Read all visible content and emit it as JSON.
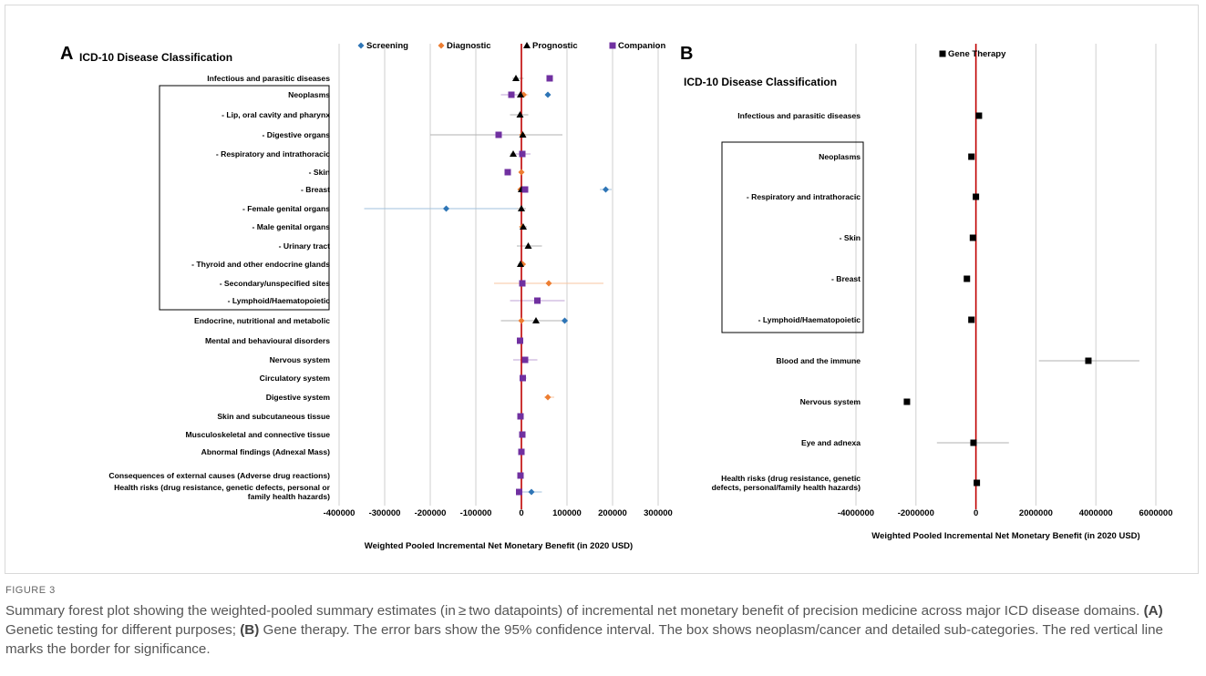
{
  "figure": {
    "label": "FIGURE 3",
    "caption_parts": [
      {
        "text": "Summary forest plot showing the weighted-pooled summary estimates (in ≥ two datapoints) of incremental net monetary benefit of precision medicine across major ICD disease domains. ",
        "bold": false
      },
      {
        "text": "(A)",
        "bold": true
      },
      {
        "text": " Genetic testing for different purposes; ",
        "bold": false
      },
      {
        "text": "(B)",
        "bold": true
      },
      {
        "text": " Gene therapy. The error bars show the 95% confidence interval. The box shows neoplasm/cancer and detailed sub-categories. The red vertical line marks the border for significance.",
        "bold": false
      }
    ]
  },
  "chart_data": [
    {
      "panel": "A",
      "type": "forest",
      "title": "ICD-10 Disease Classification",
      "xlabel": "Weighted Pooled Incremental Net Monetary Benefit (in 2020 USD)",
      "xlim": [
        -400000,
        300000
      ],
      "xticks": [
        -400000,
        -300000,
        -200000,
        -100000,
        0,
        100000,
        200000,
        300000
      ],
      "xtick_labels": [
        "-400000",
        "-300000",
        "-200000",
        "-100000",
        "0",
        "100000",
        "200000",
        "300000"
      ],
      "reference_line": 0,
      "grid": "vertical",
      "legend_position": "top",
      "boxed_categories": [
        "Neoplasms",
        "- Lymphoid/Haematopoietic"
      ],
      "series": [
        {
          "name": "Screening",
          "marker": "diamond",
          "color": "#2e75b6"
        },
        {
          "name": "Diagnostic",
          "marker": "diamond",
          "color": "#ed7d31"
        },
        {
          "name": "Prognostic",
          "marker": "triangle",
          "color": "#000000"
        },
        {
          "name": "Companion",
          "marker": "square",
          "color": "#7030a0"
        }
      ],
      "categories": [
        "Infectious and parasitic diseases",
        "Neoplasms",
        "- Lip, oral cavity and pharynx",
        "- Digestive organs",
        "- Respiratory and intrathoracic",
        "- Skin",
        "- Breast",
        "- Female genital organs",
        "- Male genital organs",
        "- Urinary tract",
        "- Thyroid and other endocrine glands",
        "- Secondary/unspecified sites",
        "- Lymphoid/Haematopoietic",
        "Endocrine, nutritional and metabolic",
        "Mental and behavioural disorders",
        "Nervous system",
        "Circulatory system",
        "Digestive system",
        "Skin and subcutaneous tissue",
        "Musculoskeletal and connective tissue",
        "Abnormal findings (Adnexal Mass)",
        "Consequences of external causes (Adverse drug reactions)",
        "Health risks (drug resistance, genetic defects, personal or family health hazards)"
      ],
      "points": [
        {
          "cat": 0,
          "s": "Prognostic",
          "v": -12000,
          "lo": -20000,
          "hi": 5000
        },
        {
          "cat": 0,
          "s": "Companion",
          "v": 62000,
          "lo": 58000,
          "hi": 66000
        },
        {
          "cat": 1,
          "s": "Screening",
          "v": 58000,
          "lo": 52000,
          "hi": 64000
        },
        {
          "cat": 1,
          "s": "Diagnostic",
          "v": 5000,
          "lo": -5000,
          "hi": 15000
        },
        {
          "cat": 1,
          "s": "Prognostic",
          "v": -2000,
          "lo": -10000,
          "hi": 8000
        },
        {
          "cat": 1,
          "s": "Companion",
          "v": -22000,
          "lo": -45000,
          "hi": 0
        },
        {
          "cat": 2,
          "s": "Prognostic",
          "v": -3000,
          "lo": -25000,
          "hi": 15000
        },
        {
          "cat": 3,
          "s": "Diagnostic",
          "v": 2000,
          "lo": -5000,
          "hi": 10000
        },
        {
          "cat": 3,
          "s": "Prognostic",
          "v": 3000,
          "lo": -200000,
          "hi": 90000
        },
        {
          "cat": 3,
          "s": "Companion",
          "v": -50000,
          "lo": -60000,
          "hi": -40000
        },
        {
          "cat": 4,
          "s": "Prognostic",
          "v": -18000,
          "lo": -25000,
          "hi": -10000
        },
        {
          "cat": 4,
          "s": "Companion",
          "v": 2000,
          "lo": -20000,
          "hi": 20000
        },
        {
          "cat": 5,
          "s": "Diagnostic",
          "v": 0,
          "lo": -5000,
          "hi": 5000
        },
        {
          "cat": 5,
          "s": "Companion",
          "v": -30000,
          "lo": -36000,
          "hi": -24000
        },
        {
          "cat": 6,
          "s": "Screening",
          "v": 185000,
          "lo": 172000,
          "hi": 198000
        },
        {
          "cat": 6,
          "s": "Diagnostic",
          "v": -2000,
          "lo": -6000,
          "hi": 2000
        },
        {
          "cat": 6,
          "s": "Prognostic",
          "v": 0,
          "lo": -5000,
          "hi": 5000
        },
        {
          "cat": 6,
          "s": "Companion",
          "v": 8000,
          "lo": 2000,
          "hi": 14000
        },
        {
          "cat": 7,
          "s": "Screening",
          "v": -165000,
          "lo": -345000,
          "hi": 10000
        },
        {
          "cat": 7,
          "s": "Prognostic",
          "v": 0,
          "lo": -10000,
          "hi": 10000
        },
        {
          "cat": 8,
          "s": "Diagnostic",
          "v": 2000,
          "lo": -5000,
          "hi": 8000
        },
        {
          "cat": 8,
          "s": "Prognostic",
          "v": 4000,
          "lo": -5000,
          "hi": 12000
        },
        {
          "cat": 9,
          "s": "Prognostic",
          "v": 15000,
          "lo": -10000,
          "hi": 45000
        },
        {
          "cat": 10,
          "s": "Diagnostic",
          "v": 3000,
          "lo": -5000,
          "hi": 10000
        },
        {
          "cat": 10,
          "s": "Prognostic",
          "v": -2000,
          "lo": -8000,
          "hi": 5000
        },
        {
          "cat": 11,
          "s": "Diagnostic",
          "v": 60000,
          "lo": -60000,
          "hi": 180000
        },
        {
          "cat": 11,
          "s": "Companion",
          "v": 2000,
          "lo": -3000,
          "hi": 7000
        },
        {
          "cat": 12,
          "s": "Companion",
          "v": 35000,
          "lo": -25000,
          "hi": 95000
        },
        {
          "cat": 13,
          "s": "Screening",
          "v": 95000,
          "lo": 88000,
          "hi": 102000
        },
        {
          "cat": 13,
          "s": "Diagnostic",
          "v": 0,
          "lo": -5000,
          "hi": 5000
        },
        {
          "cat": 13,
          "s": "Prognostic",
          "v": 32000,
          "lo": -45000,
          "hi": 90000
        },
        {
          "cat": 14,
          "s": "Companion",
          "v": -3000,
          "lo": -6000,
          "hi": 0
        },
        {
          "cat": 15,
          "s": "Companion",
          "v": 8000,
          "lo": -18000,
          "hi": 35000
        },
        {
          "cat": 16,
          "s": "Screening",
          "v": 4000,
          "lo": -2000,
          "hi": 10000
        },
        {
          "cat": 16,
          "s": "Companion",
          "v": 3000,
          "lo": -2000,
          "hi": 8000
        },
        {
          "cat": 17,
          "s": "Diagnostic",
          "v": 58000,
          "lo": 50000,
          "hi": 72000
        },
        {
          "cat": 18,
          "s": "Companion",
          "v": -2000,
          "lo": -6000,
          "hi": 2000
        },
        {
          "cat": 19,
          "s": "Diagnostic",
          "v": 2000,
          "lo": -4000,
          "hi": 8000
        },
        {
          "cat": 19,
          "s": "Companion",
          "v": 2000,
          "lo": -4000,
          "hi": 8000
        },
        {
          "cat": 20,
          "s": "Companion",
          "v": 0,
          "lo": -3000,
          "hi": 3000
        },
        {
          "cat": 21,
          "s": "Companion",
          "v": -2000,
          "lo": -6000,
          "hi": 2000
        },
        {
          "cat": 22,
          "s": "Screening",
          "v": 22000,
          "lo": 5000,
          "hi": 45000
        },
        {
          "cat": 22,
          "s": "Companion",
          "v": -5000,
          "lo": -12000,
          "hi": 5000
        }
      ]
    },
    {
      "panel": "B",
      "type": "forest",
      "title": "ICD-10 Disease Classification",
      "xlabel": "Weighted Pooled Incremental Net Monetary Benefit (in 2020 USD)",
      "xlim": [
        -4000000,
        6000000
      ],
      "xticks": [
        -4000000,
        -2000000,
        0,
        2000000,
        4000000,
        6000000
      ],
      "xtick_labels": [
        "-4000000",
        "-2000000",
        "0",
        "2000000",
        "4000000",
        "6000000"
      ],
      "reference_line": 0,
      "grid": "vertical",
      "legend_position": "top",
      "boxed_categories": [
        "Neoplasms",
        "- Lymphoid/Haematopoietic"
      ],
      "series": [
        {
          "name": "Gene Therapy",
          "marker": "square",
          "color": "#000000"
        }
      ],
      "categories": [
        "Infectious and parasitic diseases",
        "Neoplasms",
        "- Respiratory and intrathoracic",
        "- Skin",
        "- Breast",
        "- Lymphoid/Haematopoietic",
        "Blood and the immune",
        "Nervous system",
        "Eye and adnexa",
        "Health risks (drug resistance, genetic defects, personal/family health hazards)"
      ],
      "points": [
        {
          "cat": 0,
          "s": "Gene Therapy",
          "v": 100000,
          "lo": 50000,
          "hi": 150000
        },
        {
          "cat": 1,
          "s": "Gene Therapy",
          "v": -150000,
          "lo": -220000,
          "hi": -80000
        },
        {
          "cat": 2,
          "s": "Gene Therapy",
          "v": 0,
          "lo": -60000,
          "hi": 60000
        },
        {
          "cat": 3,
          "s": "Gene Therapy",
          "v": -100000,
          "lo": -160000,
          "hi": -40000
        },
        {
          "cat": 4,
          "s": "Gene Therapy",
          "v": -300000,
          "lo": -380000,
          "hi": -220000
        },
        {
          "cat": 5,
          "s": "Gene Therapy",
          "v": -150000,
          "lo": -220000,
          "hi": -80000
        },
        {
          "cat": 6,
          "s": "Gene Therapy",
          "v": 3750000,
          "lo": 2100000,
          "hi": 5450000
        },
        {
          "cat": 7,
          "s": "Gene Therapy",
          "v": -2300000,
          "lo": -2360000,
          "hi": -2240000
        },
        {
          "cat": 8,
          "s": "Gene Therapy",
          "v": -80000,
          "lo": -1300000,
          "hi": 1100000
        },
        {
          "cat": 9,
          "s": "Gene Therapy",
          "v": 30000,
          "lo": -30000,
          "hi": 90000
        }
      ]
    }
  ]
}
